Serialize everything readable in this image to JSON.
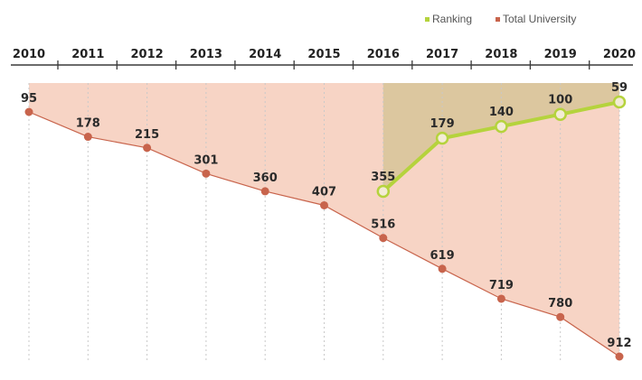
{
  "chart_data": {
    "type": "line",
    "categories": [
      "2010",
      "2011",
      "2012",
      "2013",
      "2014",
      "2015",
      "2016",
      "2017",
      "2018",
      "2019",
      "2020"
    ],
    "series": [
      {
        "name": "Total University",
        "color": "#c8644c",
        "fill": "#f7d4c5",
        "values": [
          95,
          178,
          215,
          301,
          360,
          407,
          516,
          619,
          719,
          780,
          912
        ]
      },
      {
        "name": "Ranking",
        "color": "#b5d33d",
        "fill": "#dcc79f",
        "values": [
          null,
          null,
          null,
          null,
          null,
          null,
          355,
          179,
          140,
          100,
          59
        ]
      }
    ],
    "legend": {
      "position": "top-right"
    },
    "axis_position": "top",
    "grid": "vertical-dotted"
  }
}
